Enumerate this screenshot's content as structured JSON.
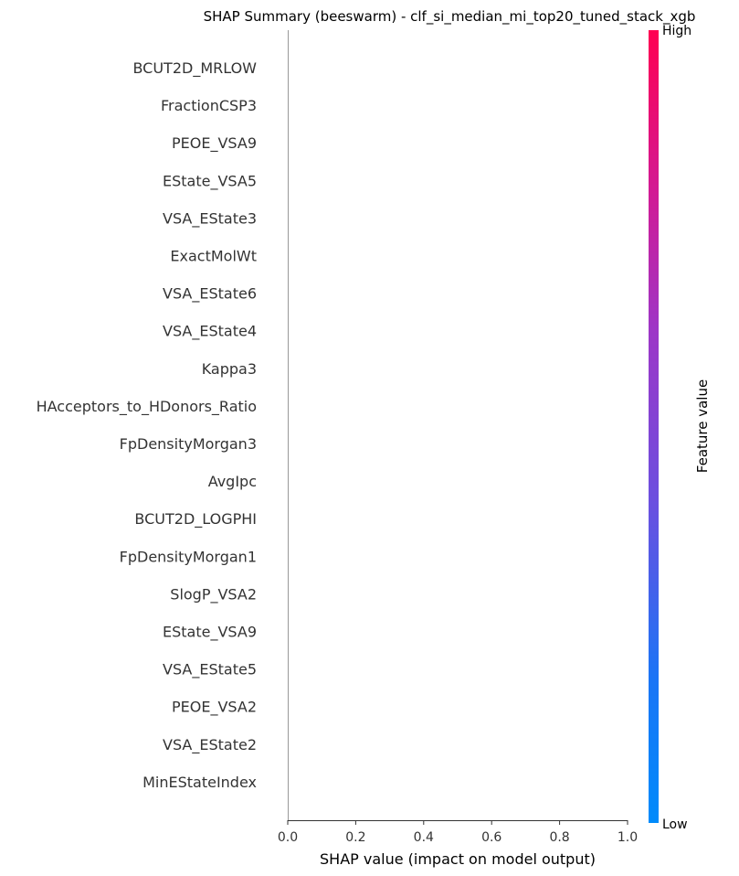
{
  "chart_data": {
    "type": "scatter",
    "subtype": "shap-beeswarm",
    "title": "SHAP Summary (beeswarm) - clf_si_median_mi_top20_tuned_stack_xgb",
    "xlabel": "SHAP value (impact on model output)",
    "xlim": [
      0,
      1
    ],
    "xticks": [
      "0.0",
      "0.2",
      "0.4",
      "0.6",
      "0.8",
      "1.0"
    ],
    "features": [
      "BCUT2D_MRLOW",
      "FractionCSP3",
      "PEOE_VSA9",
      "EState_VSA5",
      "VSA_EState3",
      "ExactMolWt",
      "VSA_EState6",
      "VSA_EState4",
      "Kappa3",
      "HAcceptors_to_HDonors_Ratio",
      "FpDensityMorgan3",
      "AvgIpc",
      "BCUT2D_LOGPHI",
      "FpDensityMorgan1",
      "SlogP_VSA2",
      "EState_VSA9",
      "VSA_EState5",
      "PEOE_VSA2",
      "VSA_EState2",
      "MinEStateIndex"
    ],
    "points": [],
    "colorbar": {
      "label": "Feature value",
      "high_label": "High",
      "low_label": "Low",
      "high_color": "#ff0051",
      "low_color": "#008bfb"
    },
    "grid": false
  }
}
